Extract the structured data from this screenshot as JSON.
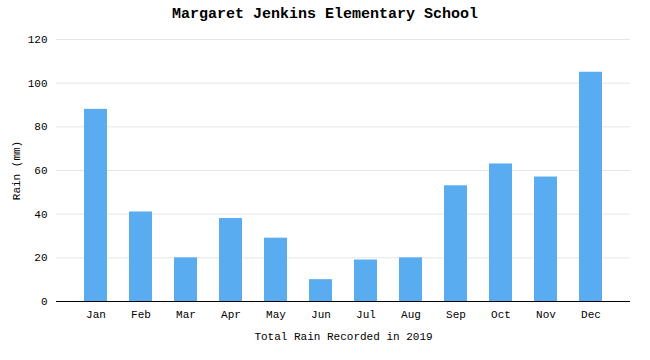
{
  "chart_data": {
    "type": "bar",
    "title": "Margaret Jenkins Elementary School",
    "xlabel": "Total Rain Recorded in 2019",
    "ylabel": "Rain (mm)",
    "categories": [
      "Jan",
      "Feb",
      "Mar",
      "Apr",
      "May",
      "Jun",
      "Jul",
      "Aug",
      "Sep",
      "Oct",
      "Nov",
      "Dec"
    ],
    "values": [
      88,
      41,
      20,
      38,
      29,
      10,
      19,
      20,
      53,
      63,
      57,
      105
    ],
    "color": "#5aacf0",
    "ylim": [
      0,
      120
    ],
    "yticks": [
      0,
      20,
      40,
      60,
      80,
      100,
      120
    ],
    "grid": true
  }
}
